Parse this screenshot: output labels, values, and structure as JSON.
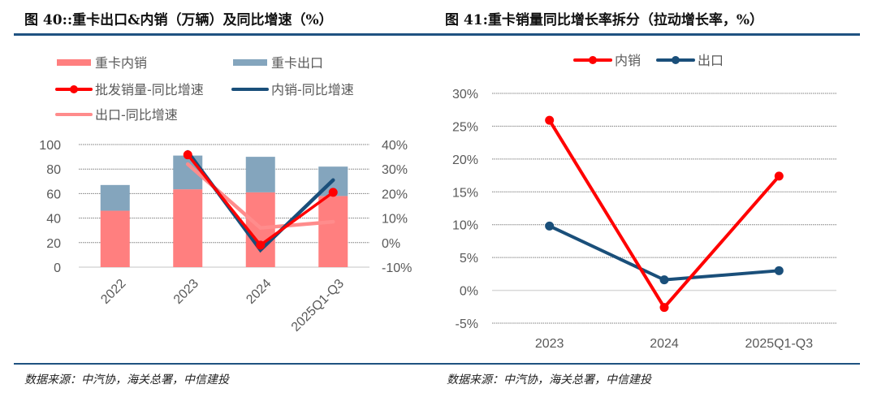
{
  "left": {
    "title": "图 40::重卡出口&内销（万辆）及同比增速（%）",
    "source": "数据来源：中汽协，海关总署，中信建投"
  },
  "right": {
    "title": "图 41:重卡销量同比增长率拆分（拉动增长率，%）",
    "source": "数据来源：中汽协，海关总署，中信建投"
  },
  "chart_data": [
    {
      "type": "bar",
      "stacked": true,
      "title": "重卡出口&内销（万辆）及同比增速（%）",
      "categories": [
        "2022",
        "2023",
        "2024",
        "2025Q1-Q3"
      ],
      "xlabel": "",
      "ylabel": "",
      "ylim": [
        0,
        100
      ],
      "yticks": [
        "0",
        "20",
        "40",
        "60",
        "80",
        "100"
      ],
      "y2lim": [
        -0.1,
        0.4
      ],
      "y2ticks": [
        "-10%",
        "0%",
        "10%",
        "20%",
        "30%",
        "40%"
      ],
      "grid": true,
      "legend_position": "top-left",
      "colors": {
        "domestic_bar": "#ff7f7f",
        "export_bar": "#84a5bd",
        "wholesale_line": "#ff0000",
        "domestic_line": "#1a4f7a",
        "export_line": "#ff8c8c"
      },
      "series": [
        {
          "name": "重卡内销",
          "kind": "bar",
          "axis": "left",
          "values": [
            46,
            63.5,
            61,
            58
          ]
        },
        {
          "name": "重卡出口",
          "kind": "bar",
          "axis": "left",
          "values": [
            21,
            27.5,
            29,
            24
          ]
        },
        {
          "name": "批发销量-同比增速",
          "kind": "line",
          "marker": true,
          "axis": "right",
          "values": [
            null,
            0.358,
            -0.01,
            0.205
          ]
        },
        {
          "name": "内销-同比增速",
          "kind": "line",
          "marker": false,
          "axis": "right",
          "values": [
            null,
            0.37,
            -0.03,
            0.255
          ]
        },
        {
          "name": "出口-同比增速",
          "kind": "line",
          "marker": false,
          "axis": "right",
          "values": [
            null,
            0.32,
            0.06,
            0.085
          ]
        }
      ],
      "legend": [
        "重卡内销",
        "重卡出口",
        "批发销量-同比增速",
        "内销-同比增速",
        "出口-同比增速"
      ]
    },
    {
      "type": "line",
      "title": "重卡销量同比增长率拆分（拉动增长率，%）",
      "categories": [
        "2023",
        "2024",
        "2025Q1-Q3"
      ],
      "xlabel": "",
      "ylabel": "",
      "ylim": [
        -0.05,
        0.3
      ],
      "yticks": [
        "-5%",
        "0%",
        "5%",
        "10%",
        "15%",
        "20%",
        "25%",
        "30%"
      ],
      "grid": true,
      "legend_position": "top",
      "colors": {
        "domestic": "#ff0000",
        "export": "#1a4f7a"
      },
      "series": [
        {
          "name": "内销",
          "values": [
            0.259,
            -0.026,
            0.174
          ]
        },
        {
          "name": "出口",
          "values": [
            0.098,
            0.016,
            0.03
          ]
        }
      ],
      "legend": [
        "内销",
        "出口"
      ]
    }
  ]
}
